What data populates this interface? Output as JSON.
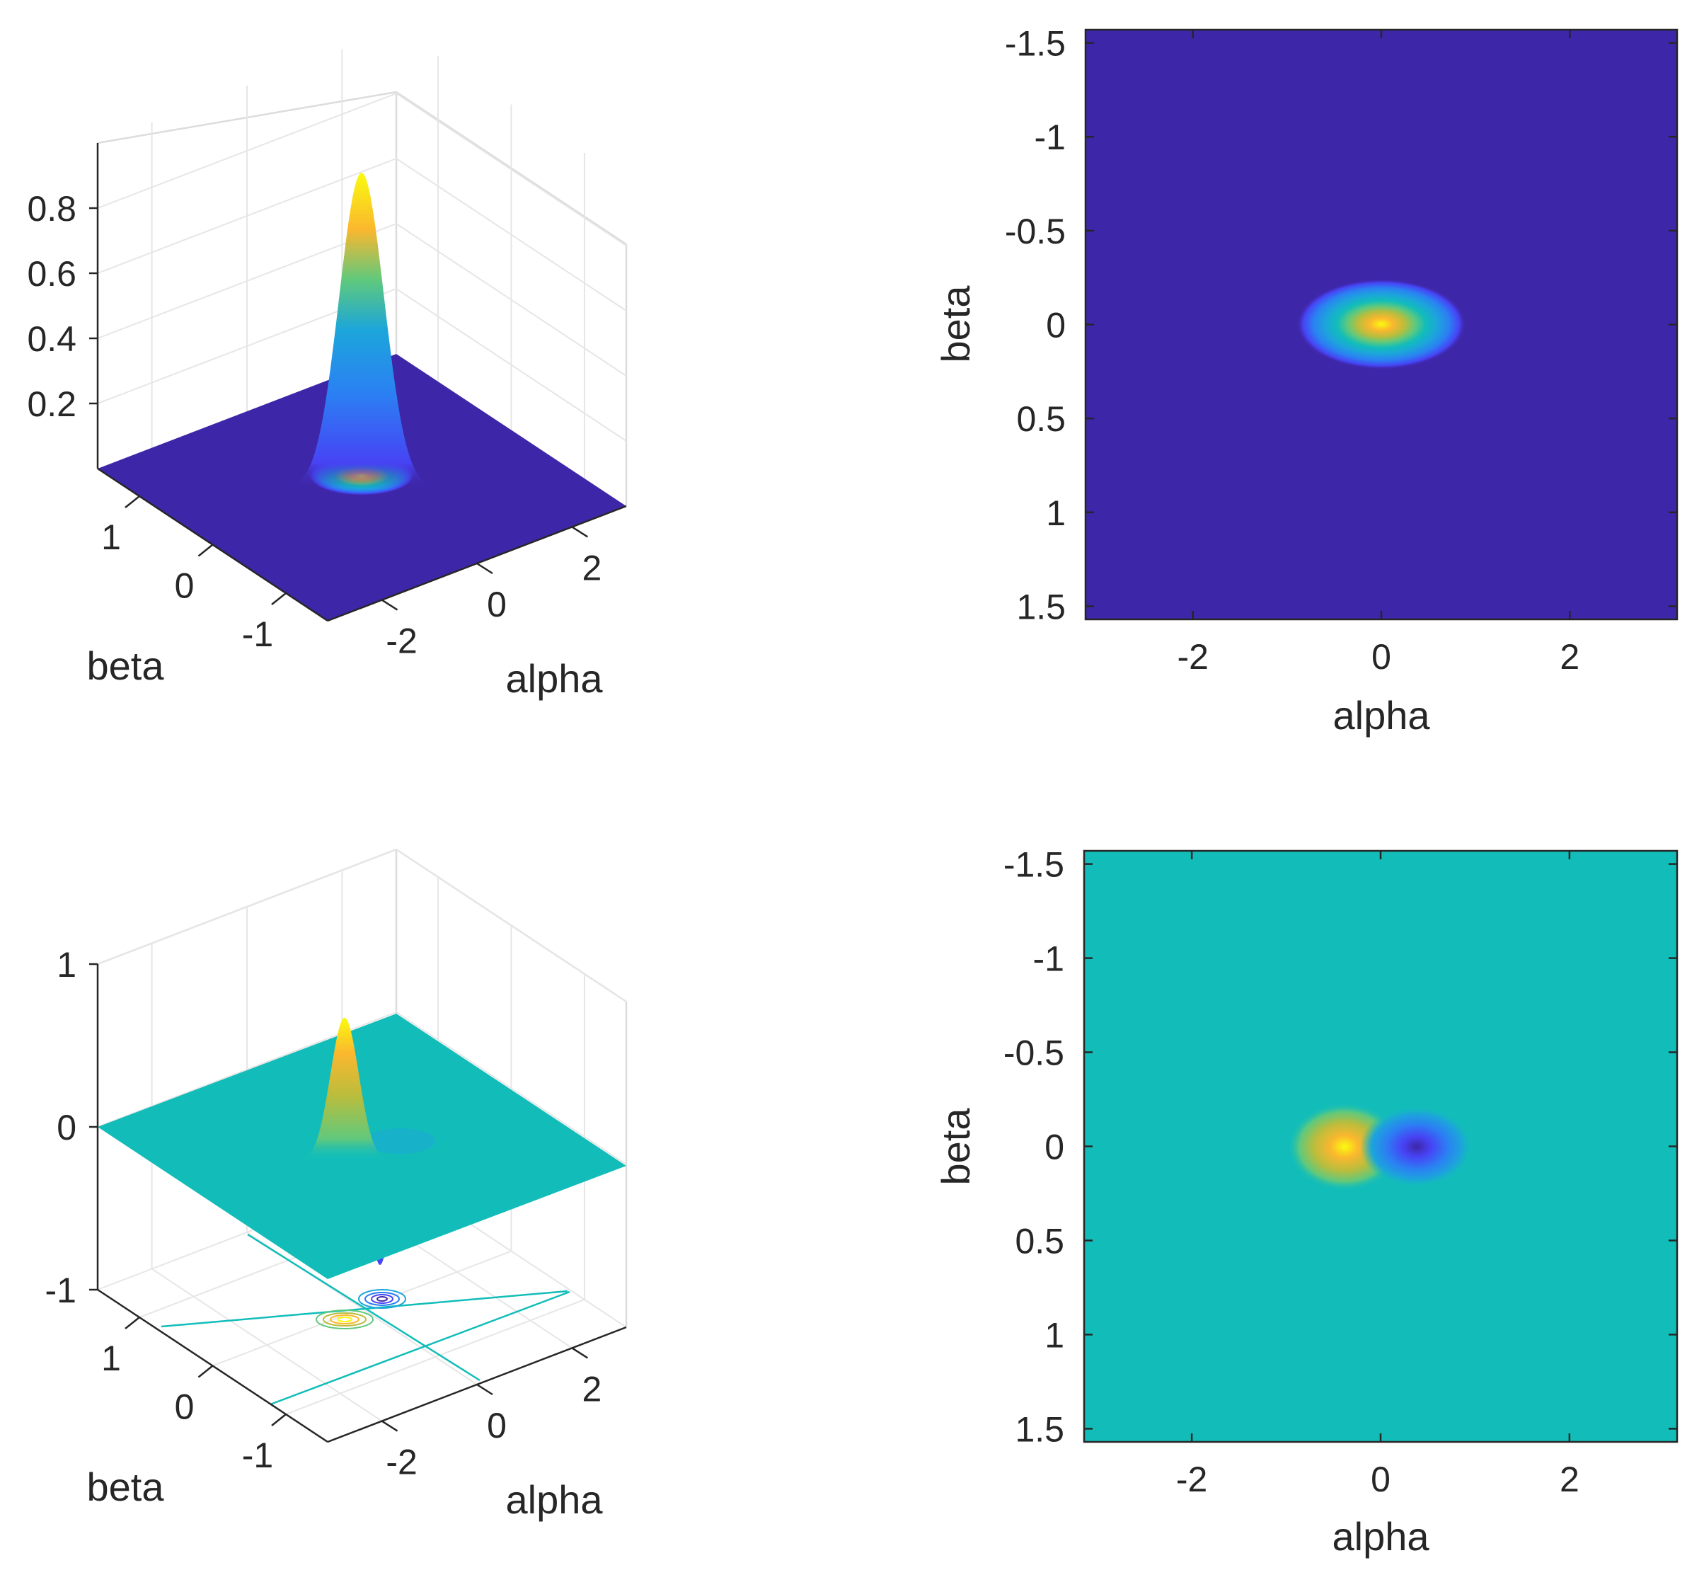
{
  "figure": {
    "layout": "2x2 grid of subplots"
  },
  "colormap": {
    "name": "parula",
    "stops": [
      "#3e26a8",
      "#4743f4",
      "#2b80f3",
      "#1ca5db",
      "#12bdb9",
      "#5fc97d",
      "#b9bd3d",
      "#fbb72e",
      "#f9fb0e"
    ]
  },
  "chart_data": [
    {
      "id": "surf-gaussian",
      "type": "surface3d",
      "title": "",
      "xlabel": "alpha",
      "ylabel": "beta",
      "zlabel": "",
      "xlim": [
        -3.14,
        3.14
      ],
      "ylim": [
        -1.57,
        1.57
      ],
      "zlim": [
        0,
        1
      ],
      "xticks": [
        -2,
        0,
        2
      ],
      "xtick_labels": [
        "-2",
        "0",
        "2"
      ],
      "yticks": [
        -1,
        0,
        1
      ],
      "ytick_labels": [
        "-1",
        "0",
        "1"
      ],
      "zticks": [
        0.2,
        0.4,
        0.6,
        0.8
      ],
      "ztick_labels": [
        "0.2",
        "0.4",
        "0.6",
        "0.8"
      ],
      "function": {
        "kind": "gaussian",
        "amplitude": 0.97,
        "center": [
          0,
          0
        ],
        "sigma_alpha": 0.28,
        "sigma_beta": 0.16
      },
      "base_color": "#3e26a8",
      "grid": true
    },
    {
      "id": "heatmap-gaussian",
      "type": "heatmap",
      "title": "",
      "xlabel": "alpha",
      "ylabel": "beta",
      "xlim": [
        -3.14,
        3.14
      ],
      "ylim": [
        -1.57,
        1.57
      ],
      "y_direction": "reverse",
      "xticks": [
        -2,
        0,
        2
      ],
      "xtick_labels": [
        "-2",
        "0",
        "2"
      ],
      "yticks": [
        -1.5,
        -1,
        -0.5,
        0,
        0.5,
        1,
        1.5
      ],
      "ytick_labels": [
        "-1.5",
        "-1",
        "-0.5",
        "0",
        "0.5",
        "1",
        "1.5"
      ],
      "function": {
        "kind": "gaussian",
        "amplitude": 1,
        "center": [
          0,
          0
        ],
        "sigma_alpha": 0.36,
        "sigma_beta": 0.11
      },
      "color_range": [
        0,
        1
      ],
      "background_color": "#3e26a8"
    },
    {
      "id": "surf-dipole",
      "type": "surface3d",
      "title": "",
      "xlabel": "alpha",
      "ylabel": "beta",
      "zlabel": "",
      "xlim": [
        -3.14,
        3.14
      ],
      "ylim": [
        -1.57,
        1.57
      ],
      "zlim": [
        -1,
        1
      ],
      "xticks": [
        -2,
        0,
        2
      ],
      "xtick_labels": [
        "-2",
        "0",
        "2"
      ],
      "yticks": [
        -1,
        0,
        1
      ],
      "ytick_labels": [
        "-1",
        "0",
        "1"
      ],
      "zticks": [
        -1,
        0,
        1
      ],
      "ztick_labels": [
        "-1",
        "0",
        "1"
      ],
      "function": {
        "kind": "dipole",
        "positive_center": [
          -0.4,
          0
        ],
        "negative_center": [
          0.4,
          0
        ],
        "amplitude": 0.88,
        "sigma_alpha": 0.22,
        "sigma_beta": 0.12
      },
      "base_color": "#12bdb9",
      "contour_projection": true,
      "grid": true
    },
    {
      "id": "heatmap-dipole",
      "type": "heatmap",
      "title": "",
      "xlabel": "alpha",
      "ylabel": "beta",
      "xlim": [
        -3.14,
        3.14
      ],
      "ylim": [
        -1.57,
        1.57
      ],
      "y_direction": "reverse",
      "xticks": [
        -2,
        0,
        2
      ],
      "xtick_labels": [
        "-2",
        "0",
        "2"
      ],
      "yticks": [
        -1.5,
        -1,
        -0.5,
        0,
        0.5,
        1,
        1.5
      ],
      "ytick_labels": [
        "-1.5",
        "-1",
        "-0.5",
        "0",
        "0.5",
        "1",
        "1.5"
      ],
      "function": {
        "kind": "dipole",
        "positive_center": [
          -0.4,
          0
        ],
        "negative_center": [
          0.4,
          0
        ],
        "amplitude": 1,
        "sigma_alpha": 0.26,
        "sigma_beta": 0.1
      },
      "color_range": [
        -1,
        1
      ],
      "background_color": "#12bdb9"
    }
  ]
}
